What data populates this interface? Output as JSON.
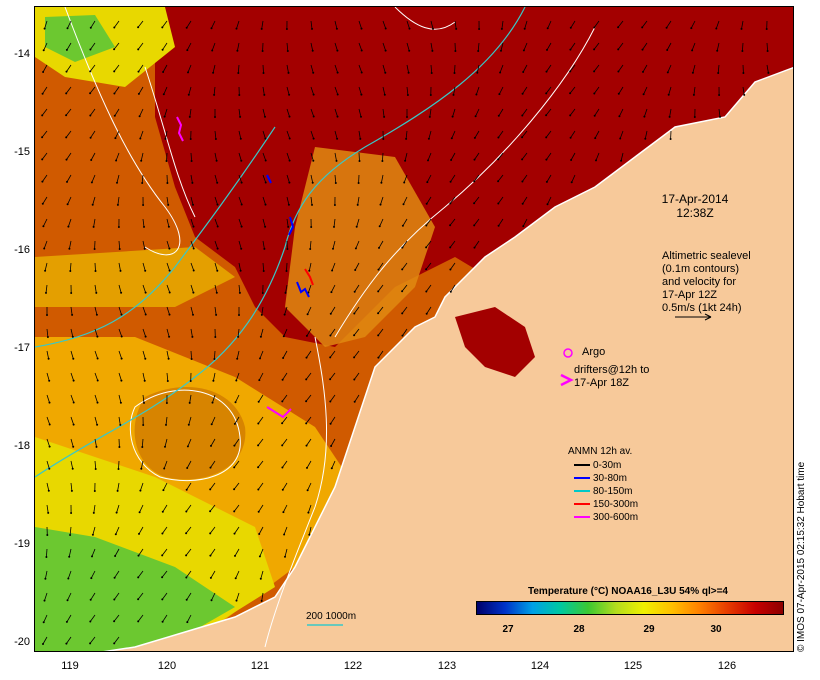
{
  "title": {
    "date": "17-Apr-2014",
    "time": "12:38Z"
  },
  "altimetry_note": "Altimetric sealevel\n(0.1m contours)\nand velocity for\n17-Apr 12Z\n0.5m/s (1kt 24h)",
  "argo_label": "Argo",
  "drifters_label": "drifters@12h to\n17-Apr 18Z",
  "anmn_legend": {
    "title": "ANMN 12h av.",
    "entries": [
      {
        "label": "0-30m",
        "color": "#000000"
      },
      {
        "label": "30-80m",
        "color": "#0000ff"
      },
      {
        "label": "80-150m",
        "color": "#00c8c8"
      },
      {
        "label": "150-300m",
        "color": "#ff0000"
      },
      {
        "label": "300-600m",
        "color": "#ff00ff"
      }
    ]
  },
  "colorbar": {
    "title": "Temperature (°C) NOAA16_L3U 54% ql>=4",
    "ticks": [
      "27",
      "28",
      "29",
      "30"
    ]
  },
  "isobath_label": "200  1000m",
  "credit": "© IMOS 07-Apr-2015 02:15:32 Hobart time",
  "y_ticks": [
    "-14",
    "-15",
    "-16",
    "-17",
    "-18",
    "-19",
    "-20"
  ],
  "x_ticks": [
    "119",
    "120",
    "121",
    "122",
    "123",
    "124",
    "125",
    "126"
  ],
  "colors": {
    "land": "#f7c99a",
    "hot": "#a30000",
    "warm": "#d05a00",
    "mid": "#f0a800",
    "cool": "#e8d800",
    "green": "#6cc830",
    "contour_white": "#ffffff",
    "isobath_cyan": "#38c8c8"
  }
}
